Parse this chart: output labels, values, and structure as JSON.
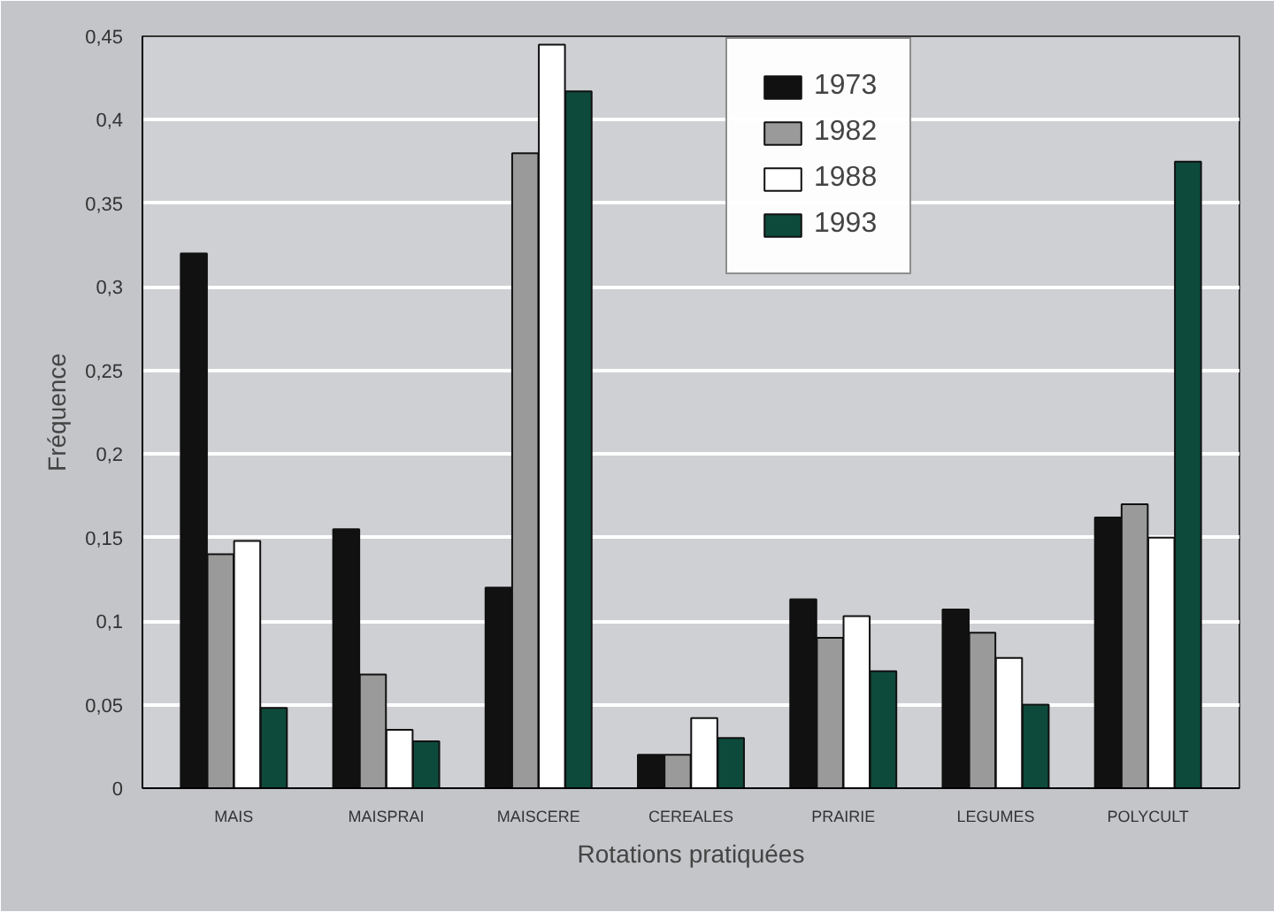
{
  "chart_data": {
    "type": "bar",
    "xlabel": "Rotations pratiquées",
    "ylabel": "Fréquence",
    "categories": [
      "MAIS",
      "MAISPRAI",
      "MAISCERE",
      "CEREALES",
      "PRAIRIE",
      "LEGUMES",
      "POLYCULT"
    ],
    "series": [
      {
        "name": "1973",
        "color": "#111111",
        "values": [
          0.32,
          0.155,
          0.12,
          0.02,
          0.113,
          0.107,
          0.162
        ]
      },
      {
        "name": "1982",
        "color": "#9a9a9a",
        "values": [
          0.14,
          0.068,
          0.38,
          0.02,
          0.09,
          0.093,
          0.17
        ]
      },
      {
        "name": "1988",
        "color": "#ffffff",
        "values": [
          0.148,
          0.035,
          0.445,
          0.042,
          0.103,
          0.078,
          0.15
        ]
      },
      {
        "name": "1993",
        "color": "#0d4a3c",
        "values": [
          0.048,
          0.028,
          0.417,
          0.03,
          0.07,
          0.05,
          0.375
        ]
      }
    ],
    "ylim": [
      0,
      0.45
    ],
    "yticks": [
      0,
      {
        "value": 0.05,
        "label": "0,05"
      },
      {
        "value": 0.1,
        "label": "0,1"
      },
      {
        "value": 0.15,
        "label": "0,15"
      },
      {
        "value": 0.2,
        "label": "0,2"
      },
      {
        "value": 0.25,
        "label": "0,25"
      },
      {
        "value": 0.3,
        "label": "0,3"
      },
      {
        "value": 0.35,
        "label": "0,35"
      },
      {
        "value": 0.4,
        "label": "0,4"
      },
      {
        "value": 0.45,
        "label": "0,45"
      }
    ],
    "grid": "y",
    "legend": "top"
  }
}
